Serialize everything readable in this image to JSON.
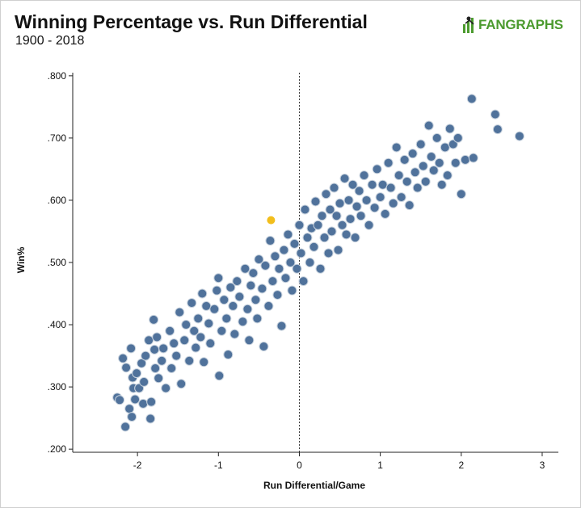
{
  "header": {
    "title": "Winning Percentage vs. Run Differential",
    "subtitle": "1900 - 2018"
  },
  "logo": {
    "text": "FANGRAPHS",
    "icon": "fangraphs-logo-icon",
    "color": "#4c9b2f"
  },
  "colors": {
    "point_fill": "#50729b",
    "point_stroke": "#c9d3de",
    "highlight": "#f2be1c",
    "axis": "#222222"
  },
  "chart_data": {
    "type": "scatter",
    "title": "Winning Percentage vs. Run Differential",
    "subtitle": "1900 - 2018",
    "xlabel": "Run Differential/Game",
    "ylabel": "Win%",
    "xlim": [
      -2.8,
      3.2
    ],
    "ylim": [
      0.195,
      0.805
    ],
    "xticks": [
      -2,
      -1,
      0,
      1,
      2,
      3
    ],
    "xtick_labels": [
      "-2",
      "-1",
      "0",
      "1",
      "2",
      "3"
    ],
    "yticks": [
      0.2,
      0.3,
      0.4,
      0.5,
      0.6,
      0.7,
      0.8
    ],
    "ytick_labels": [
      ".200",
      ".300",
      ".400",
      ".500",
      ".600",
      ".700",
      ".800"
    ],
    "reference_line": {
      "x": 0,
      "style": "dotted"
    },
    "grid": false,
    "legend": "none",
    "highlight_point": {
      "x": -0.35,
      "y": 0.568
    },
    "series": [
      {
        "points": [
          [
            -2.25,
            0.283
          ],
          [
            -2.22,
            0.279
          ],
          [
            -2.18,
            0.346
          ],
          [
            -2.15,
            0.236
          ],
          [
            -2.14,
            0.331
          ],
          [
            -2.1,
            0.265
          ],
          [
            -2.08,
            0.362
          ],
          [
            -2.07,
            0.252
          ],
          [
            -2.06,
            0.315
          ],
          [
            -2.05,
            0.298
          ],
          [
            -2.03,
            0.28
          ],
          [
            -2.01,
            0.322
          ],
          [
            -1.98,
            0.298
          ],
          [
            -1.95,
            0.338
          ],
          [
            -1.93,
            0.273
          ],
          [
            -1.92,
            0.308
          ],
          [
            -1.9,
            0.35
          ],
          [
            -1.86,
            0.375
          ],
          [
            -1.84,
            0.249
          ],
          [
            -1.83,
            0.276
          ],
          [
            -1.8,
            0.408
          ],
          [
            -1.79,
            0.36
          ],
          [
            -1.78,
            0.33
          ],
          [
            -1.76,
            0.38
          ],
          [
            -1.74,
            0.314
          ],
          [
            -1.7,
            0.342
          ],
          [
            -1.68,
            0.362
          ],
          [
            -1.65,
            0.298
          ],
          [
            -1.6,
            0.39
          ],
          [
            -1.58,
            0.33
          ],
          [
            -1.55,
            0.37
          ],
          [
            -1.52,
            0.35
          ],
          [
            -1.48,
            0.42
          ],
          [
            -1.46,
            0.305
          ],
          [
            -1.42,
            0.375
          ],
          [
            -1.4,
            0.4
          ],
          [
            -1.36,
            0.342
          ],
          [
            -1.33,
            0.435
          ],
          [
            -1.3,
            0.39
          ],
          [
            -1.28,
            0.363
          ],
          [
            -1.25,
            0.41
          ],
          [
            -1.22,
            0.38
          ],
          [
            -1.2,
            0.45
          ],
          [
            -1.18,
            0.34
          ],
          [
            -1.15,
            0.43
          ],
          [
            -1.12,
            0.402
          ],
          [
            -1.1,
            0.37
          ],
          [
            -1.05,
            0.425
          ],
          [
            -1.02,
            0.455
          ],
          [
            -1.0,
            0.475
          ],
          [
            -0.99,
            0.318
          ],
          [
            -0.96,
            0.39
          ],
          [
            -0.93,
            0.44
          ],
          [
            -0.9,
            0.41
          ],
          [
            -0.88,
            0.352
          ],
          [
            -0.85,
            0.46
          ],
          [
            -0.82,
            0.43
          ],
          [
            -0.8,
            0.385
          ],
          [
            -0.77,
            0.47
          ],
          [
            -0.74,
            0.445
          ],
          [
            -0.7,
            0.405
          ],
          [
            -0.67,
            0.49
          ],
          [
            -0.64,
            0.425
          ],
          [
            -0.62,
            0.375
          ],
          [
            -0.6,
            0.463
          ],
          [
            -0.57,
            0.483
          ],
          [
            -0.54,
            0.44
          ],
          [
            -0.52,
            0.41
          ],
          [
            -0.5,
            0.505
          ],
          [
            -0.46,
            0.458
          ],
          [
            -0.44,
            0.365
          ],
          [
            -0.42,
            0.495
          ],
          [
            -0.38,
            0.43
          ],
          [
            -0.36,
            0.535
          ],
          [
            -0.33,
            0.47
          ],
          [
            -0.3,
            0.51
          ],
          [
            -0.27,
            0.448
          ],
          [
            -0.25,
            0.49
          ],
          [
            -0.22,
            0.398
          ],
          [
            -0.19,
            0.52
          ],
          [
            -0.17,
            0.475
          ],
          [
            -0.14,
            0.545
          ],
          [
            -0.11,
            0.5
          ],
          [
            -0.09,
            0.455
          ],
          [
            -0.06,
            0.53
          ],
          [
            -0.03,
            0.49
          ],
          [
            0.0,
            0.56
          ],
          [
            0.02,
            0.515
          ],
          [
            0.05,
            0.47
          ],
          [
            0.07,
            0.585
          ],
          [
            0.1,
            0.54
          ],
          [
            0.13,
            0.5
          ],
          [
            0.15,
            0.555
          ],
          [
            0.18,
            0.525
          ],
          [
            0.2,
            0.598
          ],
          [
            0.23,
            0.56
          ],
          [
            0.26,
            0.49
          ],
          [
            0.28,
            0.575
          ],
          [
            0.31,
            0.54
          ],
          [
            0.33,
            0.61
          ],
          [
            0.36,
            0.515
          ],
          [
            0.38,
            0.585
          ],
          [
            0.4,
            0.55
          ],
          [
            0.43,
            0.62
          ],
          [
            0.46,
            0.575
          ],
          [
            0.48,
            0.52
          ],
          [
            0.5,
            0.595
          ],
          [
            0.53,
            0.56
          ],
          [
            0.56,
            0.635
          ],
          [
            0.58,
            0.545
          ],
          [
            0.61,
            0.6
          ],
          [
            0.63,
            0.57
          ],
          [
            0.66,
            0.625
          ],
          [
            0.69,
            0.54
          ],
          [
            0.71,
            0.59
          ],
          [
            0.74,
            0.615
          ],
          [
            0.76,
            0.575
          ],
          [
            0.8,
            0.64
          ],
          [
            0.83,
            0.6
          ],
          [
            0.86,
            0.56
          ],
          [
            0.9,
            0.625
          ],
          [
            0.93,
            0.588
          ],
          [
            0.96,
            0.65
          ],
          [
            1.0,
            0.605
          ],
          [
            1.03,
            0.625
          ],
          [
            1.06,
            0.578
          ],
          [
            1.1,
            0.66
          ],
          [
            1.13,
            0.62
          ],
          [
            1.16,
            0.595
          ],
          [
            1.2,
            0.685
          ],
          [
            1.23,
            0.64
          ],
          [
            1.26,
            0.605
          ],
          [
            1.3,
            0.665
          ],
          [
            1.33,
            0.63
          ],
          [
            1.36,
            0.592
          ],
          [
            1.4,
            0.675
          ],
          [
            1.43,
            0.645
          ],
          [
            1.46,
            0.62
          ],
          [
            1.5,
            0.69
          ],
          [
            1.53,
            0.655
          ],
          [
            1.56,
            0.63
          ],
          [
            1.6,
            0.72
          ],
          [
            1.63,
            0.67
          ],
          [
            1.66,
            0.648
          ],
          [
            1.7,
            0.7
          ],
          [
            1.73,
            0.66
          ],
          [
            1.76,
            0.625
          ],
          [
            1.8,
            0.685
          ],
          [
            1.83,
            0.64
          ],
          [
            1.86,
            0.715
          ],
          [
            1.9,
            0.69
          ],
          [
            1.93,
            0.66
          ],
          [
            1.96,
            0.7
          ],
          [
            2.0,
            0.61
          ],
          [
            2.05,
            0.665
          ],
          [
            2.13,
            0.763
          ],
          [
            2.15,
            0.668
          ],
          [
            2.42,
            0.738
          ],
          [
            2.45,
            0.714
          ],
          [
            2.72,
            0.703
          ]
        ]
      }
    ]
  }
}
